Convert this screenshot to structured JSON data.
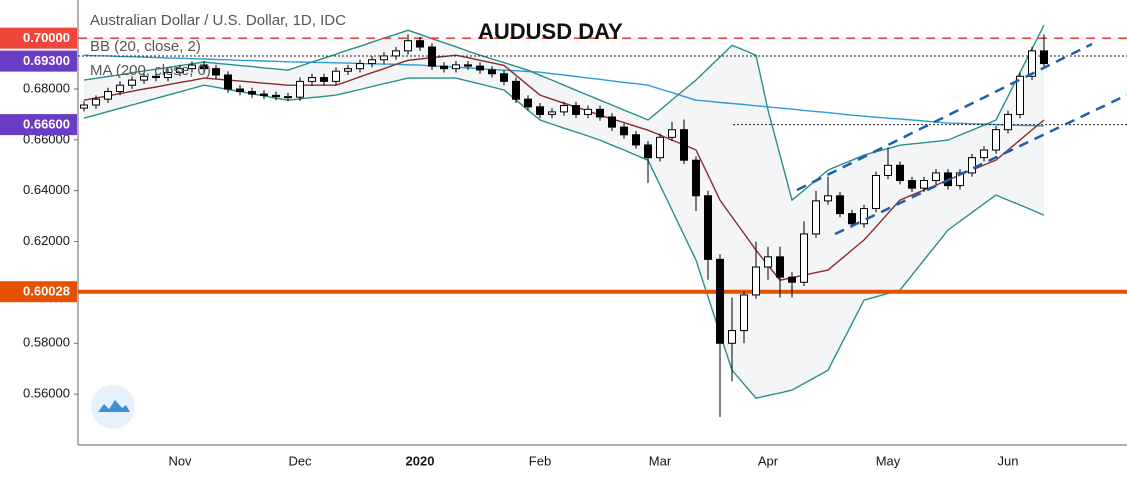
{
  "chart_data": {
    "type": "candlestick",
    "title": "AUDUSD DAY",
    "legend": [
      "Australian Dollar / U.S. Dollar, 1D, IDC",
      "BB (20, close, 2)",
      "MA (200, close, 0)"
    ],
    "categories": [
      null,
      null,
      null,
      null,
      null,
      null,
      null,
      null,
      "Nov",
      null,
      null,
      null,
      null,
      null,
      null,
      null,
      null,
      null,
      "Dec",
      null,
      null,
      null,
      null,
      null,
      null,
      null,
      null,
      null,
      "2020",
      null,
      null,
      null,
      null,
      null,
      null,
      null,
      null,
      null,
      "Feb",
      null,
      null,
      null,
      null,
      null,
      null,
      null,
      null,
      null,
      "Mar",
      null,
      null,
      null,
      null,
      null,
      null,
      null,
      null,
      "Apr",
      null,
      null,
      null,
      null,
      null,
      null,
      null,
      null,
      null,
      "May",
      null,
      null,
      null,
      null,
      null,
      null,
      null,
      null,
      null,
      "Jun",
      null,
      null,
      null
    ],
    "up_color": "#ffffff",
    "down_color": "#000000",
    "open": [
      0.6725,
      0.6737,
      0.676,
      0.679,
      0.6815,
      0.6835,
      0.685,
      0.6845,
      0.6865,
      0.688,
      0.6894,
      0.688,
      0.6855,
      0.68,
      0.679,
      0.678,
      0.6775,
      0.677,
      0.6768,
      0.683,
      0.6845,
      0.683,
      0.687,
      0.688,
      0.69,
      0.6915,
      0.693,
      0.695,
      0.699,
      0.6965,
      0.689,
      0.688,
      0.6895,
      0.689,
      0.6875,
      0.686,
      0.683,
      0.676,
      0.673,
      0.67,
      0.671,
      0.6735,
      0.67,
      0.672,
      0.669,
      0.665,
      0.662,
      0.658,
      0.653,
      0.661,
      0.664,
      0.652,
      0.638,
      0.613,
      0.58,
      0.585,
      0.599,
      0.61,
      0.614,
      0.606,
      0.604,
      0.623,
      0.636,
      0.638,
      0.631,
      0.627,
      0.633,
      0.646,
      0.65,
      0.644,
      0.641,
      0.644,
      0.647,
      0.642,
      0.647,
      0.653,
      0.656,
      0.664,
      0.67,
      0.685,
      0.695
    ],
    "high": [
      0.6752,
      0.6775,
      0.6805,
      0.683,
      0.685,
      0.6865,
      0.6865,
      0.688,
      0.6895,
      0.6909,
      0.6909,
      0.6895,
      0.687,
      0.6815,
      0.6805,
      0.6795,
      0.679,
      0.6785,
      0.6845,
      0.686,
      0.686,
      0.6885,
      0.6895,
      0.6915,
      0.693,
      0.6945,
      0.6965,
      0.7015,
      0.7005,
      0.698,
      0.6905,
      0.691,
      0.691,
      0.6905,
      0.689,
      0.6875,
      0.6845,
      0.6775,
      0.6745,
      0.6725,
      0.675,
      0.675,
      0.6735,
      0.6735,
      0.6705,
      0.6665,
      0.6635,
      0.6595,
      0.6625,
      0.667,
      0.668,
      0.6535,
      0.64,
      0.615,
      0.598,
      0.6005,
      0.62,
      0.618,
      0.618,
      0.608,
      0.628,
      0.64,
      0.6455,
      0.6395,
      0.6325,
      0.6345,
      0.6475,
      0.657,
      0.6515,
      0.6455,
      0.6455,
      0.6485,
      0.6485,
      0.6485,
      0.6545,
      0.6575,
      0.6655,
      0.6715,
      0.6865,
      0.6965,
      0.7015
    ],
    "low": [
      0.6712,
      0.6722,
      0.6745,
      0.6775,
      0.68,
      0.682,
      0.683,
      0.683,
      0.685,
      0.6865,
      0.6865,
      0.684,
      0.6785,
      0.6775,
      0.6765,
      0.676,
      0.6755,
      0.6753,
      0.6753,
      0.6815,
      0.6815,
      0.6815,
      0.6855,
      0.6865,
      0.6885,
      0.69,
      0.6915,
      0.6935,
      0.695,
      0.6875,
      0.6865,
      0.6865,
      0.6875,
      0.686,
      0.6845,
      0.6815,
      0.6745,
      0.6715,
      0.6685,
      0.6685,
      0.6695,
      0.6685,
      0.6685,
      0.6675,
      0.6635,
      0.6605,
      0.6565,
      0.643,
      0.6515,
      0.6595,
      0.6505,
      0.632,
      0.605,
      0.551,
      0.565,
      0.58,
      0.5975,
      0.605,
      0.598,
      0.598,
      0.6025,
      0.6215,
      0.6345,
      0.6295,
      0.6255,
      0.6255,
      0.6315,
      0.6445,
      0.6425,
      0.6395,
      0.6395,
      0.6425,
      0.6405,
      0.6405,
      0.6455,
      0.6515,
      0.6545,
      0.6625,
      0.6685,
      0.6835,
      0.6885
    ],
    "close": [
      0.6737,
      0.676,
      0.679,
      0.6815,
      0.6835,
      0.685,
      0.6845,
      0.6865,
      0.688,
      0.6894,
      0.688,
      0.6855,
      0.68,
      0.679,
      0.678,
      0.6775,
      0.677,
      0.6768,
      0.683,
      0.6845,
      0.683,
      0.687,
      0.688,
      0.69,
      0.6915,
      0.693,
      0.695,
      0.699,
      0.6965,
      0.689,
      0.688,
      0.6895,
      0.689,
      0.6875,
      0.686,
      0.683,
      0.676,
      0.673,
      0.67,
      0.671,
      0.6735,
      0.67,
      0.672,
      0.669,
      0.665,
      0.662,
      0.658,
      0.653,
      0.661,
      0.664,
      0.652,
      0.638,
      0.613,
      0.58,
      0.585,
      0.599,
      0.61,
      0.614,
      0.606,
      0.604,
      0.623,
      0.636,
      0.638,
      0.631,
      0.627,
      0.633,
      0.646,
      0.65,
      0.644,
      0.641,
      0.644,
      0.647,
      0.642,
      0.647,
      0.653,
      0.656,
      0.664,
      0.67,
      0.685,
      0.695,
      0.69
    ],
    "bollinger": {
      "band_color": "#2a8f8a",
      "fill": "#f4f5f6",
      "middle_color": "#8b2c2c",
      "upper": [
        0.6835,
        0.6842,
        0.6849,
        0.6856,
        0.6864,
        0.6871,
        0.6878,
        0.6885,
        0.6892,
        0.6899,
        0.6906,
        0.6901,
        0.6897,
        0.6892,
        0.6888,
        0.6883,
        0.6879,
        0.6874,
        0.689,
        0.6906,
        0.6921,
        0.6937,
        0.6953,
        0.6968,
        0.6984,
        0.7,
        0.7015,
        0.7031,
        0.7015,
        0.6998,
        0.6982,
        0.6966,
        0.6949,
        0.6933,
        0.6918,
        0.6904,
        0.6889,
        0.6874,
        0.6854,
        0.6835,
        0.6815,
        0.6795,
        0.6776,
        0.6756,
        0.6737,
        0.6717,
        0.6698,
        0.6678,
        0.6717,
        0.6757,
        0.6796,
        0.6835,
        0.6881,
        0.6926,
        0.6972,
        0.6953,
        0.6933,
        0.6717,
        0.654,
        0.6363,
        0.6402,
        0.6442,
        0.6481,
        0.6501,
        0.652,
        0.654,
        0.6553,
        0.6566,
        0.6579,
        0.6584,
        0.6589,
        0.6594,
        0.6599,
        0.6619,
        0.6638,
        0.6658,
        0.6678,
        0.6771,
        0.6865,
        0.6958,
        0.7051
      ],
      "middle": [
        0.6756,
        0.6765,
        0.6773,
        0.6782,
        0.6791,
        0.68,
        0.6808,
        0.6817,
        0.6826,
        0.6834,
        0.6843,
        0.6839,
        0.6835,
        0.6831,
        0.6827,
        0.6823,
        0.6819,
        0.6815,
        0.6815,
        0.6815,
        0.6815,
        0.6815,
        0.6831,
        0.6848,
        0.6864,
        0.688,
        0.6897,
        0.6913,
        0.6918,
        0.6923,
        0.6928,
        0.6933,
        0.6923,
        0.6913,
        0.6903,
        0.6893,
        0.6854,
        0.6815,
        0.6776,
        0.676,
        0.6744,
        0.6729,
        0.6713,
        0.6697,
        0.6682,
        0.6668,
        0.6653,
        0.6638,
        0.6619,
        0.6599,
        0.658,
        0.656,
        0.6462,
        0.6363,
        0.6297,
        0.6232,
        0.6166,
        0.6107,
        0.6048,
        0.6058,
        0.6068,
        0.6078,
        0.6088,
        0.6127,
        0.6167,
        0.6206,
        0.6258,
        0.6311,
        0.6363,
        0.6383,
        0.6403,
        0.6422,
        0.6442,
        0.6462,
        0.6481,
        0.6501,
        0.652,
        0.656,
        0.6599,
        0.6639,
        0.6678
      ],
      "lower": [
        0.6685,
        0.6698,
        0.6711,
        0.6724,
        0.6737,
        0.675,
        0.6763,
        0.6776,
        0.6789,
        0.6802,
        0.6815,
        0.6807,
        0.6798,
        0.679,
        0.6781,
        0.6773,
        0.6764,
        0.6756,
        0.6761,
        0.6766,
        0.6771,
        0.6776,
        0.6787,
        0.6798,
        0.681,
        0.6821,
        0.6832,
        0.6843,
        0.6843,
        0.6843,
        0.6843,
        0.6843,
        0.6831,
        0.682,
        0.6808,
        0.6796,
        0.6757,
        0.6717,
        0.6678,
        0.6662,
        0.6646,
        0.6631,
        0.6615,
        0.6599,
        0.6579,
        0.656,
        0.654,
        0.652,
        0.6422,
        0.6324,
        0.6225,
        0.6127,
        0.5983,
        0.5838,
        0.5694,
        0.5639,
        0.5584,
        0.5595,
        0.5605,
        0.5616,
        0.5642,
        0.5668,
        0.5694,
        0.5786,
        0.5878,
        0.597,
        0.5983,
        0.5996,
        0.6009,
        0.6068,
        0.6127,
        0.6186,
        0.6245,
        0.628,
        0.6314,
        0.6349,
        0.6383,
        0.6363,
        0.6344,
        0.6324,
        0.6304
      ]
    },
    "ma200": {
      "color": "#2f9bd6",
      "values": [
        0.6933,
        0.6931,
        0.693,
        0.6928,
        0.6927,
        0.6925,
        0.6924,
        0.6922,
        0.6921,
        0.6919,
        0.6918,
        0.6916,
        0.6915,
        0.6913,
        0.6912,
        0.691,
        0.6909,
        0.6907,
        0.6906,
        0.6905,
        0.6904,
        0.6903,
        0.6902,
        0.69,
        0.6899,
        0.6898,
        0.6897,
        0.6895,
        0.6894,
        0.6891,
        0.6888,
        0.6886,
        0.6883,
        0.688,
        0.6877,
        0.6874,
        0.6872,
        0.6869,
        0.6866,
        0.686,
        0.6855,
        0.6849,
        0.6843,
        0.6838,
        0.6832,
        0.6826,
        0.6821,
        0.6815,
        0.68,
        0.6786,
        0.6771,
        0.6756,
        0.6752,
        0.6747,
        0.6743,
        0.6739,
        0.6734,
        0.673,
        0.6725,
        0.6721,
        0.6716,
        0.6711,
        0.6707,
        0.6702,
        0.6697,
        0.6693,
        0.6689,
        0.6685,
        0.6682,
        0.6678,
        0.6674,
        0.667,
        0.6666,
        0.6665,
        0.6663,
        0.6662,
        0.666,
        0.6659,
        0.6657,
        0.6656,
        0.6654
      ]
    },
    "levels": [
      {
        "value": 0.7,
        "label": "0.70000",
        "color": "#f0453a",
        "style": "dashed"
      },
      {
        "value": 0.693,
        "label": "0.69300",
        "color": "#6a3bc4",
        "style": "dotted"
      },
      {
        "value": 0.666,
        "label": "0.66600",
        "color": "#6a3bc4",
        "style": "dotted"
      },
      {
        "value": 0.60028,
        "label": "0.60028",
        "color": "#e65100",
        "style": "thick"
      }
    ],
    "ylim": [
      0.54,
      0.715
    ],
    "yticks": [
      {
        "value": 0.56,
        "label": "0.56000"
      },
      {
        "value": 0.58,
        "label": "0.58000"
      },
      {
        "value": 0.62,
        "label": "0.62000"
      },
      {
        "value": 0.64,
        "label": "0.64000"
      },
      {
        "value": 0.66,
        "label": "0.66000"
      },
      {
        "value": 0.68,
        "label": "0.68000"
      }
    ],
    "grid": false
  }
}
